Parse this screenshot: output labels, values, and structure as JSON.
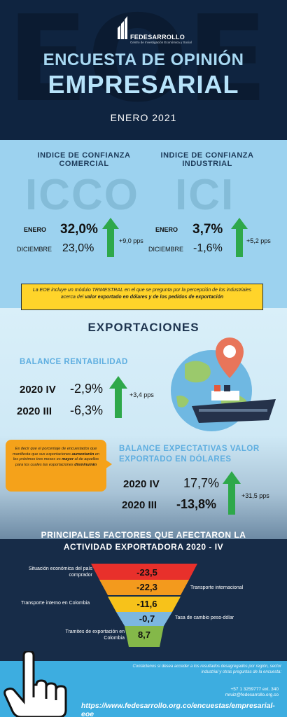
{
  "header": {
    "bg_text": "EOE",
    "logo_name": "FEDESARROLLO",
    "logo_sub": "Centro de Investigación Económica y Social",
    "title_line1": "ENCUESTA DE OPINIÓN",
    "title_line2": "EMPRESARIAL",
    "date": "ENERO 2021"
  },
  "commercial": {
    "title_line1": "INDICE DE CONFIANZA",
    "title_line2": "COMERCIAL",
    "acronym": "ICCO",
    "current_label": "ENERO",
    "current_value": "32,0%",
    "previous_label": "DICIEMBRE",
    "previous_value": "23,0%",
    "change": "+9,0 pps"
  },
  "industrial": {
    "title_line1": "INDICE DE CONFIANZA",
    "title_line2": "INDUSTRIAL",
    "acronym": "ICI",
    "current_label": "ENERO",
    "current_value": "3,7%",
    "previous_label": "DICIEMBRE",
    "previous_value": "-1,6%",
    "change": "+5,2 pps"
  },
  "note": {
    "text_a": "La EOE incluye un módulo TRIMESTRAL en el que se pregunta por la percepción de los industriales acerca del ",
    "text_b": "valor exportado en dólares y de los pedidos de exportación"
  },
  "exports": {
    "title": "EXPORTACIONES",
    "profit": {
      "title": "BALANCE RENTABILIDAD",
      "rows": [
        {
          "period": "2020 IV",
          "value": "-2,9%"
        },
        {
          "period": "2020 III",
          "value": "-6,3%"
        }
      ],
      "change": "+3,4 pps"
    },
    "expect": {
      "title_line1": "BALANCE EXPECTATIVAS VALOR",
      "title_line2": "EXPORTADO EN DÓLARES",
      "rows": [
        {
          "period": "2020 IV",
          "value": "17,7%"
        },
        {
          "period": "2020 III",
          "value": "-13,8%"
        }
      ],
      "change": "+31,5 pps"
    },
    "bubble": {
      "p1": "Es decir que el porcentaje de encuestados que manifiesta que sus exportaciones ",
      "p2": "aumentarán",
      "p3": " en los próximos tres meses es ",
      "p4": "mayor",
      "p5": " al de aquellos para los cuales las exportaciones ",
      "p6": "disminuirán"
    }
  },
  "factors": {
    "title_line1": "PRINCIPALES FACTORES QUE AFECTARON LA",
    "title_line2": "ACTIVIDAD EXPORTADORA 2020 - IV",
    "items": [
      {
        "label": "Situación económica del país comprador",
        "value": "-23,5",
        "color": "#e8302b"
      },
      {
        "label": "Transporte internacional",
        "value": "-22,3",
        "color": "#f39a1d"
      },
      {
        "label": "Transporte interno en Colombia",
        "value": "-11,6",
        "color": "#f7c21a"
      },
      {
        "label": "Tasa de cambio peso-dólar",
        "value": "-0,7",
        "color": "#7cb7e0"
      },
      {
        "label": "Tramites de exportación en Colombia",
        "value": "8,7",
        "color": "#84b849"
      }
    ]
  },
  "footer": {
    "contact": "Contáctenos si desea acceder a los resultados desagregados por región, sector industrial y otras preguntas de la encuesta:",
    "phone": "+57 1 3259777 ext. 340",
    "email": "mruiz@fedesarrollo.org.co",
    "url": "https://www.fedesarrollo.org.co/encuestas/empresarial-eoe"
  },
  "colors": {
    "header_bg": "#0f2440",
    "section_blue": "#9cd2ef",
    "accent_green": "#2ea84a",
    "note_yellow": "#ffd42a",
    "bubble_orange": "#f5a21a",
    "footer_blue": "#3dade0"
  }
}
